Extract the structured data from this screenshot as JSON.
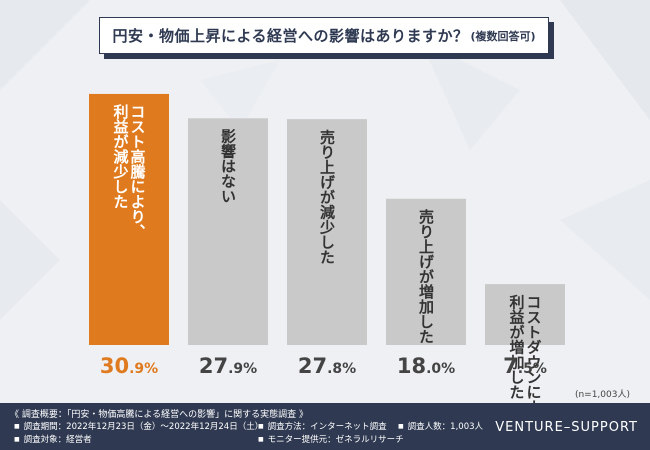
{
  "title": {
    "main": "円安・物価上昇による経営への影響はありますか？",
    "sub": "(複数回答可)"
  },
  "chart_data": {
    "type": "bar",
    "title": "円安・物価上昇による経営への影響はありますか？(複数回答可)",
    "categories": [
      "コスト高騰により、利益が減少した",
      "影響はない",
      "売り上げが減少した",
      "売り上げが増加した",
      "コストダウンにより、利益が増加した"
    ],
    "category_lines": [
      [
        "コスト高騰により、",
        "利益が減少した"
      ],
      [
        "影響はない"
      ],
      [
        "売り上げが減少した"
      ],
      [
        "売り上げが増加した"
      ],
      [
        "コストダウンにより、",
        "利益が増加した"
      ]
    ],
    "values": [
      30.9,
      27.9,
      27.8,
      18.0,
      7.5
    ],
    "value_labels": [
      {
        "int": "30",
        "dec": ".9%"
      },
      {
        "int": "27",
        "dec": ".9%"
      },
      {
        "int": "27",
        "dec": ".8%"
      },
      {
        "int": "18",
        "dec": ".0%"
      },
      {
        "int": "7",
        "dec": ".5%"
      }
    ],
    "ylim": [
      0,
      32
    ],
    "highlight_index": 0,
    "colors": {
      "highlight": "#e07a1e",
      "normal": "#c9c9c9",
      "highlight_label": "#e07a1e",
      "normal_label": "#444444"
    }
  },
  "sample_size": "(n=1,003人)",
  "footer": {
    "heading": "《 調査概要：「円安・物価高騰による経営への影響」に関する実態調査 》",
    "period": "調査期間：2022年12月23日（金）～2022年12月24日（土）",
    "target": "調査対象：経営者",
    "method": "調査方法：インターネット調査",
    "monitor": "モニター提供元：ゼネラルリサーチ",
    "count": "調査人数：1,003人",
    "brand": "VENTURE–SUPPORT"
  },
  "colors": {
    "navy": "#2f3a52",
    "background": "#eef0f3"
  }
}
